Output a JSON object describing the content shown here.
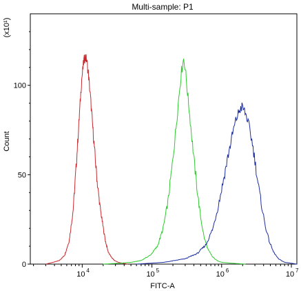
{
  "chart_data": {
    "type": "line",
    "title": "Multi-sample: P1",
    "xlabel": "FITC-A",
    "ylabel": "Count",
    "y_multiplier": "(x10¹)",
    "x_scale": "log",
    "xlim": [
      1800,
      12000000
    ],
    "ylim": [
      0,
      140
    ],
    "x_ticks": [
      {
        "value": 10000,
        "base": "10",
        "exp": "4"
      },
      {
        "value": 100000,
        "base": "10",
        "exp": "5"
      },
      {
        "value": 1000000,
        "base": "10",
        "exp": "6"
      },
      {
        "value": 10000000,
        "base": "10",
        "exp": "7"
      }
    ],
    "y_ticks": [
      {
        "value": 0,
        "label": "0"
      },
      {
        "value": 50,
        "label": "50"
      },
      {
        "value": 100,
        "label": "100"
      }
    ],
    "grid": false,
    "series": [
      {
        "color": "#c8282c",
        "x": [
          3000,
          3800,
          4700,
          5600,
          6500,
          7400,
          8200,
          9000,
          9800,
          10500,
          11000,
          11600,
          12300,
          13200,
          14200,
          15300,
          16500,
          18000,
          19700,
          21500,
          23500,
          26000,
          29000,
          33000,
          38000,
          45000
        ],
        "y": [
          0,
          1,
          2,
          5,
          13,
          30,
          55,
          80,
          103,
          113,
          116,
          114,
          106,
          92,
          76,
          60,
          45,
          32,
          22,
          13,
          7,
          4,
          2,
          1,
          0.5,
          0
        ]
      },
      {
        "color": "#2ec92e",
        "x": [
          20000,
          35000,
          50000,
          70000,
          95000,
          120000,
          145000,
          170000,
          195000,
          220000,
          245000,
          265000,
          285000,
          300000,
          320000,
          345000,
          375000,
          410000,
          450000,
          500000,
          560000,
          640000,
          740000,
          860000,
          1000000,
          1400000,
          2200000
        ],
        "y": [
          0,
          0.5,
          1,
          2,
          5,
          10,
          20,
          35,
          55,
          75,
          95,
          108,
          115,
          110,
          98,
          85,
          70,
          55,
          40,
          26,
          15,
          8,
          4,
          2,
          1,
          0.5,
          0
        ]
      },
      {
        "color": "#1b2c9e",
        "x": [
          60000,
          150000,
          300000,
          450000,
          600000,
          750000,
          900000,
          1050000,
          1200000,
          1350000,
          1500000,
          1650000,
          1800000,
          1950000,
          2100000,
          2300000,
          2500000,
          2750000,
          3000000,
          3300000,
          3700000,
          4200000,
          4800000,
          5500000,
          6500000,
          8000000,
          10000000,
          12000000
        ],
        "y": [
          0,
          1,
          3,
          6,
          11,
          20,
          33,
          46,
          58,
          68,
          76,
          82,
          86,
          88,
          86,
          82,
          76,
          68,
          58,
          46,
          34,
          22,
          13,
          7,
          3,
          1,
          0.5,
          0
        ]
      }
    ]
  }
}
